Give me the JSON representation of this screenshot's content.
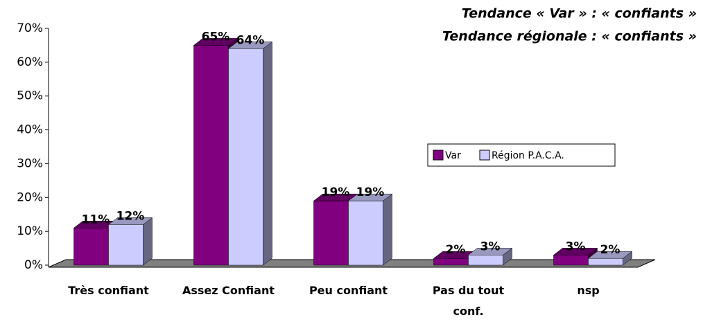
{
  "chart_data": {
    "type": "bar3d",
    "annotations": [
      "Tendance « Var » : « confiants »",
      "Tendance régionale : « confiants »"
    ],
    "categories": [
      "Très confiant",
      "Assez Confiant",
      "Peu confiant",
      "Pas du tout conf.",
      "nsp"
    ],
    "series": [
      {
        "name": "Var",
        "color": "#800080",
        "values": [
          11,
          65,
          19,
          2,
          3
        ],
        "value_labels": [
          "11%",
          "65%",
          "19%",
          "2%",
          "3%"
        ]
      },
      {
        "name": "Région P.A.C.A.",
        "color": "#ccccff",
        "values": [
          12,
          64,
          19,
          3,
          2
        ],
        "value_labels": [
          "12%",
          "64%",
          "19%",
          "3%",
          "2%"
        ]
      }
    ],
    "ylim": [
      0,
      70
    ],
    "yticks": [
      {
        "value": 0,
        "label": "0%"
      },
      {
        "value": 10,
        "label": "10%"
      },
      {
        "value": 20,
        "label": "20%"
      },
      {
        "value": 30,
        "label": "30%"
      },
      {
        "value": 40,
        "label": "40%"
      },
      {
        "value": 50,
        "label": "50%"
      },
      {
        "value": 60,
        "label": "60%"
      },
      {
        "value": 70,
        "label": "70%"
      }
    ],
    "legend": "right"
  }
}
